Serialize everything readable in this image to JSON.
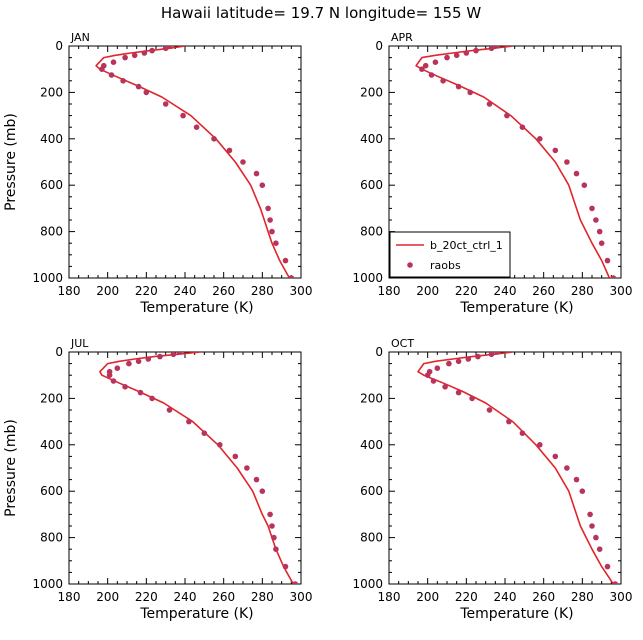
{
  "figure": {
    "title": "Hawaii  latitude= 19.7 N longitude= 155 W",
    "colors": {
      "model_line": "#e0262a",
      "obs_marker": "#b8345c"
    }
  },
  "chart_data": [
    {
      "type": "line",
      "panel_label": "JAN",
      "xlabel": "Temperature (K)",
      "ylabel": "Pressure (mb)",
      "xlim": [
        180,
        300
      ],
      "ylim": [
        1000,
        0
      ],
      "xticks": [
        180,
        200,
        220,
        240,
        260,
        280,
        300
      ],
      "yticks": [
        0,
        200,
        400,
        600,
        800,
        1000
      ],
      "y_inverted": true,
      "series": [
        {
          "kind": "line",
          "x": [
            240,
            232,
            222,
            212,
            204,
            198,
            194,
            196,
            204,
            215,
            228,
            243,
            256,
            266,
            274,
            279,
            281,
            283,
            285,
            289,
            294
          ],
          "y": [
            0,
            10,
            20,
            30,
            40,
            50,
            85,
            100,
            130,
            170,
            220,
            300,
            400,
            500,
            600,
            700,
            750,
            800,
            850,
            925,
            1000
          ]
        },
        {
          "kind": "scatter",
          "x": [
            232,
            230,
            223,
            219,
            214,
            209,
            203,
            198,
            197,
            202,
            208,
            216,
            220,
            230,
            239,
            246,
            255,
            263,
            270,
            277,
            280,
            283,
            284,
            285,
            287,
            292,
            295
          ],
          "y": [
            0,
            10,
            20,
            30,
            40,
            50,
            70,
            85,
            100,
            125,
            150,
            175,
            200,
            250,
            300,
            350,
            400,
            450,
            500,
            550,
            600,
            700,
            750,
            800,
            850,
            925,
            1000
          ]
        }
      ]
    },
    {
      "type": "line",
      "panel_label": "APR",
      "xlabel": "Temperature (K)",
      "ylabel": "",
      "xlim": [
        180,
        300
      ],
      "ylim": [
        1000,
        0
      ],
      "xticks": [
        180,
        200,
        220,
        240,
        260,
        280,
        300
      ],
      "yticks": [
        0,
        200,
        400,
        600,
        800,
        1000
      ],
      "y_inverted": true,
      "legend": {
        "placement": "bottom-left",
        "entries": [
          "b_20ct_ctrl_1",
          "raobs"
        ]
      },
      "series": [
        {
          "name": "b_20ct_ctrl_1",
          "kind": "line",
          "x": [
            244,
            234,
            223,
            213,
            204,
            197,
            194,
            197,
            205,
            216,
            229,
            243,
            256,
            266,
            273,
            277,
            279,
            282,
            285,
            290,
            294
          ],
          "y": [
            0,
            10,
            20,
            30,
            40,
            50,
            85,
            100,
            130,
            170,
            220,
            300,
            400,
            500,
            600,
            700,
            750,
            800,
            850,
            925,
            1000
          ]
        },
        {
          "name": "raobs",
          "kind": "scatter",
          "x": [
            235,
            233,
            225,
            220,
            215,
            210,
            204,
            199,
            197,
            202,
            208,
            216,
            222,
            232,
            241,
            249,
            258,
            266,
            272,
            277,
            281,
            285,
            287,
            289,
            290,
            293,
            296
          ],
          "y": [
            0,
            10,
            20,
            30,
            40,
            50,
            70,
            85,
            100,
            125,
            150,
            175,
            200,
            250,
            300,
            350,
            400,
            450,
            500,
            550,
            600,
            700,
            750,
            800,
            850,
            925,
            1000
          ]
        }
      ]
    },
    {
      "type": "line",
      "panel_label": "JUL",
      "xlabel": "Temperature (K)",
      "ylabel": "Pressure (mb)",
      "xlim": [
        180,
        300
      ],
      "ylim": [
        1000,
        0
      ],
      "xticks": [
        180,
        200,
        220,
        240,
        260,
        280,
        300
      ],
      "yticks": [
        0,
        200,
        400,
        600,
        800,
        1000
      ],
      "y_inverted": true,
      "series": [
        {
          "kind": "line",
          "x": [
            248,
            236,
            224,
            214,
            206,
            200,
            196,
            197,
            205,
            216,
            229,
            244,
            257,
            267,
            275,
            280,
            283,
            285,
            287,
            291,
            296
          ],
          "y": [
            0,
            10,
            20,
            30,
            40,
            50,
            85,
            100,
            130,
            170,
            220,
            300,
            400,
            500,
            600,
            700,
            750,
            800,
            850,
            925,
            1000
          ]
        },
        {
          "kind": "scatter",
          "x": [
            237,
            234,
            227,
            221,
            216,
            211,
            205,
            201,
            201,
            203,
            209,
            217,
            223,
            232,
            242,
            250,
            258,
            266,
            272,
            277,
            280,
            284,
            285,
            286,
            287,
            292,
            297
          ],
          "y": [
            0,
            10,
            20,
            30,
            40,
            50,
            70,
            85,
            100,
            125,
            150,
            175,
            200,
            250,
            300,
            350,
            400,
            450,
            500,
            550,
            600,
            700,
            750,
            800,
            850,
            925,
            1000
          ]
        }
      ]
    },
    {
      "type": "line",
      "panel_label": "OCT",
      "xlabel": "Temperature (K)",
      "ylabel": "",
      "xlim": [
        180,
        300
      ],
      "ylim": [
        1000,
        0
      ],
      "xticks": [
        180,
        200,
        220,
        240,
        260,
        280,
        300
      ],
      "yticks": [
        0,
        200,
        400,
        600,
        800,
        1000
      ],
      "y_inverted": true,
      "series": [
        {
          "kind": "line",
          "x": [
            244,
            234,
            223,
            213,
            204,
            198,
            195,
            198,
            207,
            218,
            230,
            244,
            256,
            266,
            273,
            277,
            279,
            282,
            285,
            290,
            296
          ],
          "y": [
            0,
            10,
            20,
            30,
            40,
            50,
            85,
            100,
            130,
            170,
            220,
            300,
            400,
            500,
            600,
            700,
            750,
            800,
            850,
            925,
            1000
          ]
        },
        {
          "kind": "scatter",
          "x": [
            236,
            233,
            226,
            221,
            216,
            211,
            205,
            201,
            200,
            203,
            209,
            216,
            223,
            232,
            242,
            249,
            258,
            266,
            272,
            277,
            280,
            284,
            285,
            287,
            289,
            293,
            297
          ],
          "y": [
            0,
            10,
            20,
            30,
            40,
            50,
            70,
            85,
            100,
            125,
            150,
            175,
            200,
            250,
            300,
            350,
            400,
            450,
            500,
            550,
            600,
            700,
            750,
            800,
            850,
            925,
            1000
          ]
        }
      ]
    }
  ]
}
